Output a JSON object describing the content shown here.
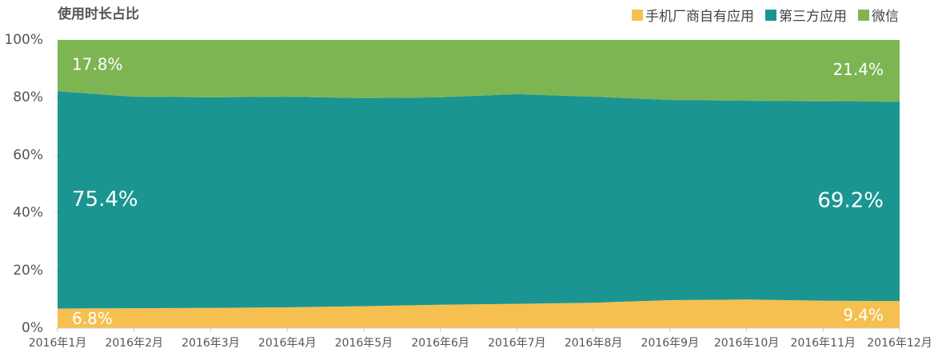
{
  "chart_data": {
    "type": "stacked-area",
    "title": "使用时长占比",
    "categories": [
      "2016年1月",
      "2016年2月",
      "2016年3月",
      "2016年4月",
      "2016年5月",
      "2016年6月",
      "2016年7月",
      "2016年8月",
      "2016年9月",
      "2016年10月",
      "2016年11月",
      "2016年12月"
    ],
    "series": [
      {
        "name": "手机厂商自有应用",
        "color": "#f5c04f",
        "values": [
          6.8,
          6.9,
          7.0,
          7.2,
          7.6,
          8.1,
          8.4,
          8.8,
          9.7,
          9.9,
          9.5,
          9.4
        ],
        "value_labels": [
          "6.8%",
          null,
          null,
          null,
          null,
          null,
          null,
          null,
          null,
          null,
          null,
          "9.4%"
        ]
      },
      {
        "name": "第三方应用",
        "color": "#1b9592",
        "values": [
          75.4,
          73.4,
          73.1,
          73.1,
          72.2,
          72.0,
          72.8,
          71.5,
          69.5,
          69.0,
          69.2,
          69.2
        ],
        "value_labels": [
          "75.4%",
          null,
          null,
          null,
          null,
          null,
          null,
          null,
          null,
          null,
          null,
          "69.2%"
        ]
      },
      {
        "name": "微信",
        "color": "#7db553",
        "values": [
          17.8,
          19.7,
          19.9,
          19.7,
          20.2,
          19.9,
          18.8,
          19.7,
          20.8,
          21.1,
          21.3,
          21.4
        ],
        "value_labels": [
          "17.8%",
          null,
          null,
          null,
          null,
          null,
          null,
          null,
          null,
          null,
          null,
          "21.4%"
        ]
      }
    ],
    "ylim": [
      0,
      100
    ],
    "yticks": [
      {
        "value": 0,
        "label": "0%"
      },
      {
        "value": 20,
        "label": "20%"
      },
      {
        "value": 40,
        "label": "40%"
      },
      {
        "value": 60,
        "label": "60%"
      },
      {
        "value": 80,
        "label": "80%"
      },
      {
        "value": 100,
        "label": "100%"
      }
    ],
    "legend": "top-right"
  }
}
